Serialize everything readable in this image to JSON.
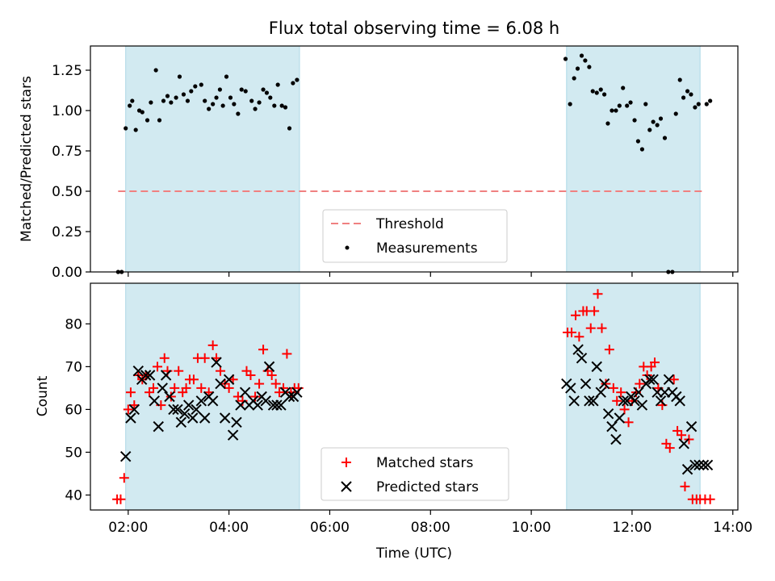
{
  "figure": {
    "title": "Flux total observing time = 6.08 h",
    "xlabel": "Time (UTC)",
    "x_ticks": [
      "02:00",
      "04:00",
      "06:00",
      "08:00",
      "10:00",
      "12:00",
      "14:00"
    ],
    "x_tick_hours": [
      2,
      4,
      6,
      8,
      10,
      12,
      14
    ],
    "xlim_hours": [
      1.25,
      14.1
    ]
  },
  "chart_data": [
    {
      "type": "scatter",
      "ylabel": "Matched/Predicted stars",
      "ylim": [
        0,
        1.4
      ],
      "y_ticks": [
        0,
        0.25,
        0.5,
        0.75,
        1.0,
        1.25
      ],
      "y_tick_labels": [
        "0.00",
        "0.25",
        "0.50",
        "0.75",
        "1.00",
        "1.25"
      ],
      "shaded_regions_hours": [
        [
          1.95,
          5.4
        ],
        [
          10.7,
          13.35
        ]
      ],
      "shade_color": "#add8e6",
      "threshold": {
        "name": "Threshold",
        "value": 0.5,
        "x_range_hours": [
          1.8,
          13.4
        ],
        "color": "#f08080"
      },
      "legend": {
        "position": "lower center",
        "entries": [
          "Threshold",
          "Measurements"
        ]
      },
      "series": [
        {
          "name": "Measurements",
          "color": "#000000",
          "marker": "dot",
          "x_hours": [
            1.8,
            1.87,
            1.95,
            2.03,
            2.08,
            2.15,
            2.22,
            2.28,
            2.38,
            2.45,
            2.55,
            2.62,
            2.7,
            2.78,
            2.85,
            2.95,
            3.02,
            3.1,
            3.18,
            3.25,
            3.33,
            3.45,
            3.52,
            3.6,
            3.68,
            3.75,
            3.82,
            3.88,
            3.95,
            4.03,
            4.1,
            4.18,
            4.25,
            4.33,
            4.45,
            4.52,
            4.6,
            4.68,
            4.75,
            4.82,
            4.9,
            4.97,
            5.05,
            5.12,
            5.2,
            5.27,
            5.35,
            10.68,
            10.77,
            10.85,
            10.92,
            11.0,
            11.07,
            11.15,
            11.22,
            11.3,
            11.38,
            11.45,
            11.52,
            11.6,
            11.68,
            11.75,
            11.82,
            11.9,
            11.97,
            12.05,
            12.12,
            12.2,
            12.27,
            12.35,
            12.42,
            12.5,
            12.57,
            12.65,
            12.72,
            12.8,
            12.87,
            12.95,
            13.02,
            13.1,
            13.17,
            13.25,
            13.32,
            13.48,
            13.55
          ],
          "y": [
            0,
            0,
            0.89,
            1.03,
            1.06,
            0.88,
            1.0,
            0.99,
            0.94,
            1.05,
            1.25,
            0.94,
            1.06,
            1.09,
            1.05,
            1.08,
            1.21,
            1.1,
            1.06,
            1.12,
            1.15,
            1.16,
            1.06,
            1.01,
            1.04,
            1.08,
            1.13,
            1.03,
            1.21,
            1.08,
            1.04,
            0.98,
            1.13,
            1.12,
            1.06,
            1.01,
            1.05,
            1.13,
            1.11,
            1.08,
            1.03,
            1.16,
            1.03,
            1.02,
            0.89,
            1.17,
            1.19,
            1.32,
            1.04,
            1.2,
            1.26,
            1.34,
            1.31,
            1.27,
            1.12,
            1.11,
            1.13,
            1.1,
            0.92,
            1.0,
            1.0,
            1.03,
            1.14,
            1.03,
            1.05,
            0.94,
            0.81,
            0.76,
            1.04,
            0.88,
            0.93,
            0.91,
            0.95,
            0.83,
            0,
            0,
            0.98,
            1.19,
            1.08,
            1.12,
            1.1,
            1.02,
            1.04,
            1.04,
            1.06
          ],
          "y_note": ""
        }
      ]
    },
    {
      "type": "scatter",
      "ylabel": "Count",
      "ylim": [
        36.5,
        89.5
      ],
      "y_ticks": [
        40,
        50,
        60,
        70,
        80
      ],
      "y_tick_labels": [
        "40",
        "50",
        "60",
        "70",
        "80"
      ],
      "shaded_regions_hours": [
        [
          1.95,
          5.4
        ],
        [
          10.7,
          13.35
        ]
      ],
      "shade_color": "#add8e6",
      "legend": {
        "position": "lower center",
        "entries": [
          "Matched stars",
          "Predicted stars"
        ]
      },
      "series": [
        {
          "name": "Matched stars",
          "color": "#ff0000",
          "marker": "plus",
          "x_hours": [
            1.78,
            1.85,
            1.92,
            2.0,
            2.05,
            2.12,
            2.2,
            2.28,
            2.35,
            2.42,
            2.5,
            2.58,
            2.65,
            2.72,
            2.78,
            2.85,
            2.92,
            3.0,
            3.08,
            3.15,
            3.22,
            3.3,
            3.38,
            3.45,
            3.52,
            3.6,
            3.68,
            3.75,
            3.83,
            3.92,
            4.0,
            4.08,
            4.18,
            4.27,
            4.35,
            4.43,
            4.52,
            4.6,
            4.68,
            4.77,
            4.85,
            4.93,
            5.0,
            5.08,
            5.15,
            5.23,
            5.3,
            5.38,
            10.72,
            10.8,
            10.88,
            10.95,
            11.03,
            11.1,
            11.18,
            11.25,
            11.32,
            11.4,
            11.48,
            11.55,
            11.63,
            11.7,
            11.78,
            11.85,
            11.93,
            12.0,
            12.08,
            12.15,
            12.23,
            12.3,
            12.38,
            12.45,
            12.52,
            12.6,
            12.68,
            12.75,
            12.83,
            12.9,
            12.98,
            13.05,
            13.13,
            13.2,
            13.28,
            13.35,
            13.45,
            13.55
          ],
          "y": [
            39,
            39,
            44,
            60,
            64,
            61,
            68,
            67,
            68,
            64,
            65,
            70,
            61,
            72,
            69,
            63,
            65,
            69,
            64,
            65,
            67,
            67,
            72,
            65,
            72,
            64,
            75,
            72,
            69,
            66,
            65,
            67,
            63,
            62,
            69,
            68,
            63,
            66,
            74,
            69,
            68,
            66,
            64,
            65,
            73,
            64,
            65,
            65,
            78,
            78,
            82,
            77,
            83,
            83,
            79,
            83,
            87,
            79,
            66,
            74,
            65,
            62,
            64,
            60,
            57,
            62,
            64,
            66,
            70,
            68,
            70,
            71,
            65,
            61,
            52,
            51,
            67,
            55,
            54,
            42,
            53,
            39,
            39,
            39,
            39,
            39
          ],
          "y_note": ""
        },
        {
          "name": "Predicted stars",
          "color": "#000000",
          "marker": "x",
          "x_hours": [
            1.95,
            2.05,
            2.12,
            2.2,
            2.27,
            2.35,
            2.43,
            2.52,
            2.6,
            2.68,
            2.75,
            2.82,
            2.9,
            2.98,
            3.05,
            3.12,
            3.2,
            3.28,
            3.35,
            3.45,
            3.52,
            3.6,
            3.68,
            3.75,
            3.83,
            3.92,
            4.0,
            4.08,
            4.15,
            4.23,
            4.32,
            4.4,
            4.48,
            4.57,
            4.65,
            4.73,
            4.8,
            4.88,
            4.95,
            5.03,
            5.12,
            5.2,
            5.28,
            5.35,
            10.7,
            10.78,
            10.85,
            10.93,
            11.0,
            11.08,
            11.15,
            11.23,
            11.3,
            11.38,
            11.45,
            11.53,
            11.6,
            11.68,
            11.75,
            11.83,
            11.9,
            11.98,
            12.05,
            12.13,
            12.2,
            12.28,
            12.35,
            12.42,
            12.5,
            12.57,
            12.65,
            12.73,
            12.8,
            12.88,
            12.95,
            13.03,
            13.1,
            13.18,
            13.25,
            13.33,
            13.42,
            13.5
          ],
          "y": [
            49,
            58,
            60,
            69,
            67,
            68,
            68,
            62,
            56,
            65,
            68,
            63,
            60,
            60,
            57,
            59,
            61,
            58,
            60,
            62,
            58,
            63,
            62,
            71,
            66,
            58,
            67,
            54,
            57,
            61,
            64,
            61,
            62,
            61,
            63,
            62,
            70,
            61,
            61,
            61,
            64,
            63,
            63,
            64,
            66,
            65,
            62,
            74,
            72,
            66,
            62,
            62,
            70,
            64,
            66,
            59,
            56,
            53,
            58,
            62,
            62,
            63,
            62,
            64,
            61,
            66,
            67,
            67,
            64,
            62,
            64,
            67,
            64,
            63,
            62,
            52,
            46,
            56,
            47,
            47,
            47,
            47
          ],
          "y_note": ""
        }
      ]
    }
  ]
}
